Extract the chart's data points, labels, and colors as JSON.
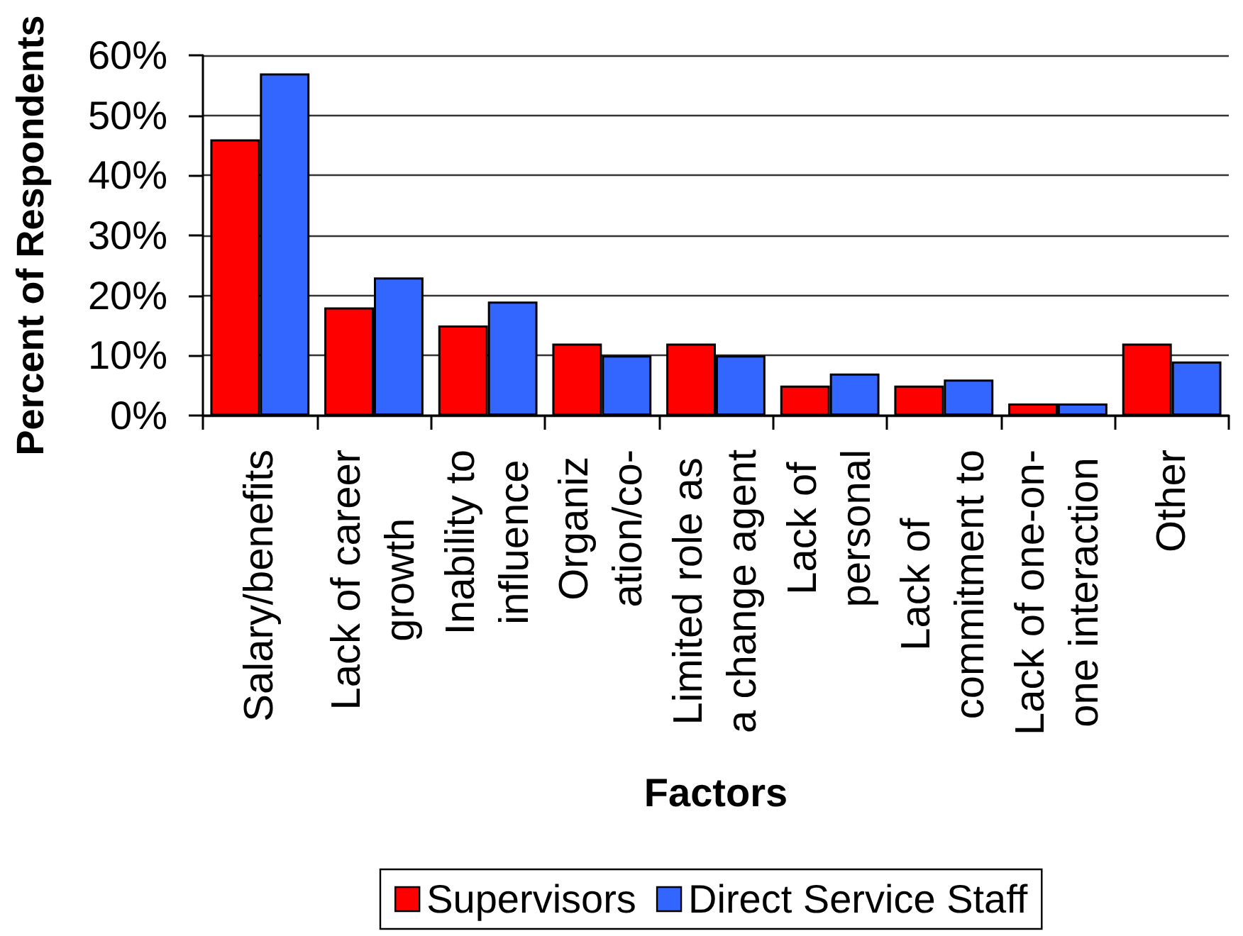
{
  "chart_data": {
    "type": "bar",
    "xlabel": "Factors",
    "ylabel": "Percent of Respondents",
    "categories": [
      "Salary/benefits",
      "Lack of career\ngrowth",
      "Inability to\ninfluence",
      "Organiz\nation/co-",
      "Limited role as\na change agent",
      "Lack of\npersonal",
      "Lack of\ncommitment to",
      "Lack of one-on-\none interaction",
      "Other"
    ],
    "series": [
      {
        "name": "Supervisors",
        "color": "#ff0000",
        "values": [
          46,
          18,
          15,
          12,
          12,
          5,
          5,
          2,
          12
        ]
      },
      {
        "name": "Direct Service Staff",
        "color": "#3366ff",
        "values": [
          57,
          23,
          19,
          10,
          10,
          7,
          6,
          2,
          9
        ]
      }
    ],
    "ylim": [
      0,
      60
    ],
    "yticks": [
      {
        "value": 0,
        "label": "0%"
      },
      {
        "value": 10,
        "label": "10%"
      },
      {
        "value": 20,
        "label": "20%"
      },
      {
        "value": 30,
        "label": "30%"
      },
      {
        "value": 40,
        "label": "40%"
      },
      {
        "value": 50,
        "label": "50%"
      },
      {
        "value": 60,
        "label": "60%"
      }
    ],
    "grid": "y",
    "legend": "bottom"
  }
}
